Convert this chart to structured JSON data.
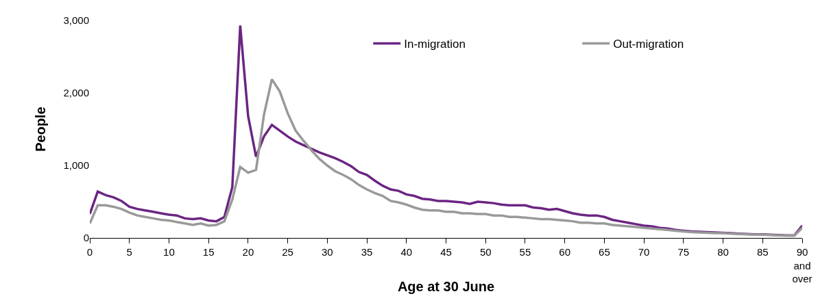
{
  "chart_data": {
    "type": "line",
    "xlabel": "Age at 30 June",
    "ylabel": "People",
    "x": [
      0,
      1,
      2,
      3,
      4,
      5,
      6,
      7,
      8,
      9,
      10,
      11,
      12,
      13,
      14,
      15,
      16,
      17,
      18,
      19,
      20,
      21,
      22,
      23,
      24,
      25,
      26,
      27,
      28,
      29,
      30,
      31,
      32,
      33,
      34,
      35,
      36,
      37,
      38,
      39,
      40,
      41,
      42,
      43,
      44,
      45,
      46,
      47,
      48,
      49,
      50,
      51,
      52,
      53,
      54,
      55,
      56,
      57,
      58,
      59,
      60,
      61,
      62,
      63,
      64,
      65,
      66,
      67,
      68,
      69,
      70,
      71,
      72,
      73,
      74,
      75,
      76,
      77,
      78,
      79,
      80,
      81,
      82,
      83,
      84,
      85,
      86,
      87,
      88,
      89,
      90
    ],
    "series": [
      {
        "name": "In-migration",
        "color": "#6b2583",
        "values": [
          330,
          640,
          590,
          560,
          510,
          430,
          400,
          380,
          360,
          340,
          320,
          310,
          270,
          260,
          270,
          240,
          230,
          290,
          700,
          2930,
          1680,
          1120,
          1400,
          1560,
          1480,
          1400,
          1330,
          1280,
          1230,
          1180,
          1140,
          1100,
          1050,
          990,
          910,
          870,
          790,
          720,
          670,
          650,
          600,
          580,
          540,
          530,
          510,
          510,
          500,
          490,
          470,
          500,
          490,
          480,
          460,
          450,
          450,
          450,
          420,
          410,
          390,
          400,
          370,
          340,
          320,
          310,
          310,
          290,
          250,
          230,
          210,
          190,
          170,
          160,
          140,
          130,
          110,
          100,
          90,
          85,
          80,
          75,
          70,
          65,
          60,
          55,
          50,
          50,
          45,
          40,
          35,
          35,
          170
        ]
      },
      {
        "name": "Out-migration",
        "color": "#999999",
        "values": [
          200,
          450,
          450,
          430,
          400,
          350,
          310,
          290,
          270,
          250,
          240,
          220,
          200,
          180,
          200,
          170,
          180,
          230,
          530,
          980,
          900,
          940,
          1700,
          2190,
          2020,
          1720,
          1480,
          1340,
          1210,
          1090,
          1000,
          920,
          870,
          810,
          730,
          670,
          620,
          580,
          510,
          490,
          460,
          420,
          390,
          380,
          380,
          360,
          360,
          340,
          340,
          330,
          330,
          310,
          310,
          290,
          290,
          280,
          270,
          260,
          260,
          250,
          240,
          230,
          210,
          210,
          200,
          200,
          180,
          170,
          160,
          150,
          140,
          130,
          120,
          110,
          100,
          90,
          80,
          75,
          70,
          65,
          65,
          60,
          55,
          50,
          45,
          45,
          40,
          35,
          30,
          30,
          140
        ]
      }
    ],
    "xlim": [
      0,
      90
    ],
    "xticks": [
      0,
      5,
      10,
      15,
      20,
      25,
      30,
      35,
      40,
      45,
      50,
      55,
      60,
      65,
      70,
      75,
      80,
      85,
      {
        "value": 90,
        "label": "90 and over"
      }
    ],
    "ylim": [
      0,
      3000
    ],
    "yticks": [
      {
        "value": 0,
        "label": "0"
      },
      {
        "value": 1000,
        "label": "1,000"
      },
      {
        "value": 2000,
        "label": "2,000"
      },
      {
        "value": 3000,
        "label": "3,000"
      }
    ],
    "grid": false,
    "legend": "top right",
    "marker": "none",
    "line_style": "solid"
  }
}
